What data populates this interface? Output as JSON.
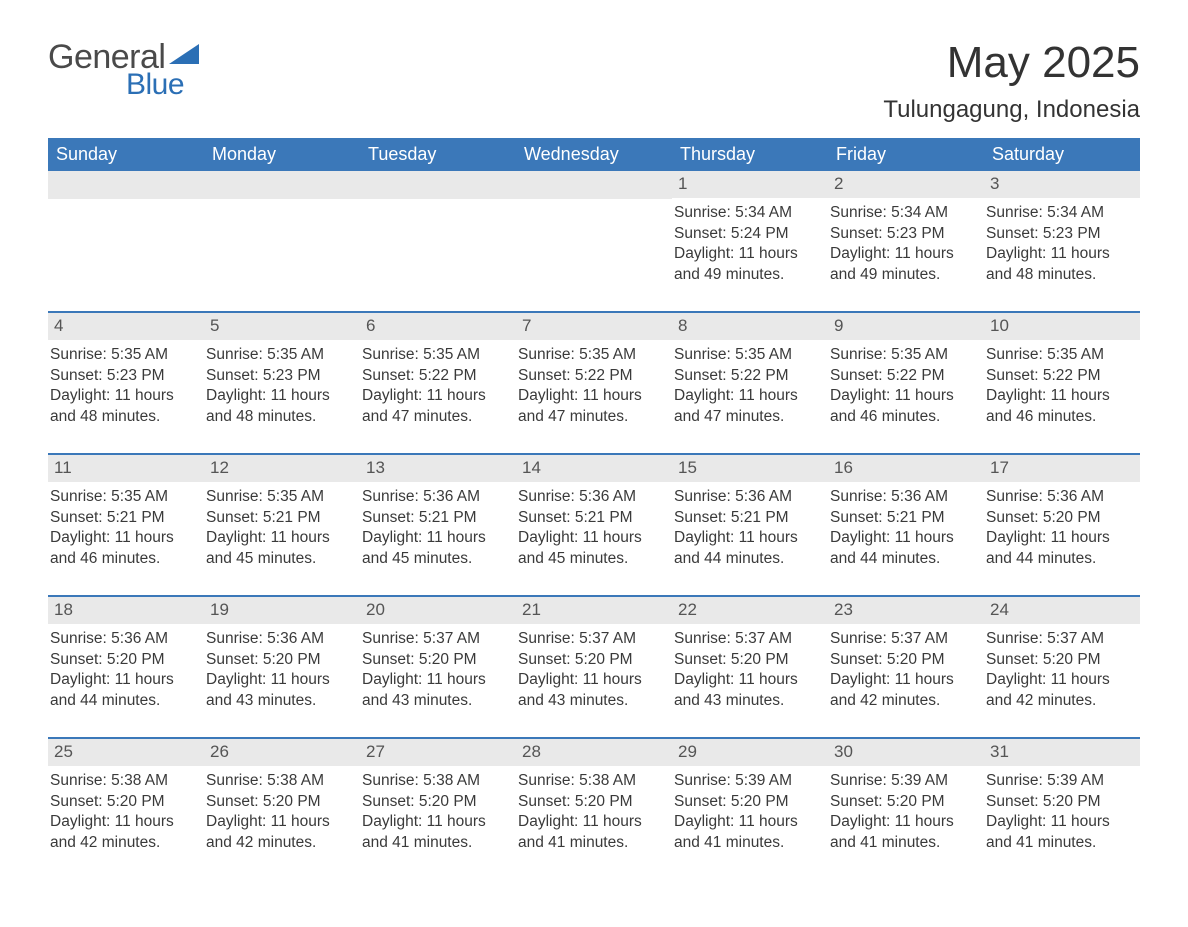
{
  "logo": {
    "text1": "General",
    "text2": "Blue",
    "accent_color": "#2b6fb5"
  },
  "title": {
    "month": "May 2025",
    "location": "Tulungagung, Indonesia"
  },
  "colors": {
    "header_bg": "#3b78b9",
    "header_text": "#ffffff",
    "daynum_bg": "#e9e9e9",
    "daynum_text": "#555555",
    "body_text": "#3a3a3a",
    "row_border": "#3b78b9"
  },
  "day_headers": [
    "Sunday",
    "Monday",
    "Tuesday",
    "Wednesday",
    "Thursday",
    "Friday",
    "Saturday"
  ],
  "weeks": [
    [
      {
        "day": "",
        "lines": []
      },
      {
        "day": "",
        "lines": []
      },
      {
        "day": "",
        "lines": []
      },
      {
        "day": "",
        "lines": []
      },
      {
        "day": "1",
        "lines": [
          "Sunrise: 5:34 AM",
          "Sunset: 5:24 PM",
          "Daylight: 11 hours and 49 minutes."
        ]
      },
      {
        "day": "2",
        "lines": [
          "Sunrise: 5:34 AM",
          "Sunset: 5:23 PM",
          "Daylight: 11 hours and 49 minutes."
        ]
      },
      {
        "day": "3",
        "lines": [
          "Sunrise: 5:34 AM",
          "Sunset: 5:23 PM",
          "Daylight: 11 hours and 48 minutes."
        ]
      }
    ],
    [
      {
        "day": "4",
        "lines": [
          "Sunrise: 5:35 AM",
          "Sunset: 5:23 PM",
          "Daylight: 11 hours and 48 minutes."
        ]
      },
      {
        "day": "5",
        "lines": [
          "Sunrise: 5:35 AM",
          "Sunset: 5:23 PM",
          "Daylight: 11 hours and 48 minutes."
        ]
      },
      {
        "day": "6",
        "lines": [
          "Sunrise: 5:35 AM",
          "Sunset: 5:22 PM",
          "Daylight: 11 hours and 47 minutes."
        ]
      },
      {
        "day": "7",
        "lines": [
          "Sunrise: 5:35 AM",
          "Sunset: 5:22 PM",
          "Daylight: 11 hours and 47 minutes."
        ]
      },
      {
        "day": "8",
        "lines": [
          "Sunrise: 5:35 AM",
          "Sunset: 5:22 PM",
          "Daylight: 11 hours and 47 minutes."
        ]
      },
      {
        "day": "9",
        "lines": [
          "Sunrise: 5:35 AM",
          "Sunset: 5:22 PM",
          "Daylight: 11 hours and 46 minutes."
        ]
      },
      {
        "day": "10",
        "lines": [
          "Sunrise: 5:35 AM",
          "Sunset: 5:22 PM",
          "Daylight: 11 hours and 46 minutes."
        ]
      }
    ],
    [
      {
        "day": "11",
        "lines": [
          "Sunrise: 5:35 AM",
          "Sunset: 5:21 PM",
          "Daylight: 11 hours and 46 minutes."
        ]
      },
      {
        "day": "12",
        "lines": [
          "Sunrise: 5:35 AM",
          "Sunset: 5:21 PM",
          "Daylight: 11 hours and 45 minutes."
        ]
      },
      {
        "day": "13",
        "lines": [
          "Sunrise: 5:36 AM",
          "Sunset: 5:21 PM",
          "Daylight: 11 hours and 45 minutes."
        ]
      },
      {
        "day": "14",
        "lines": [
          "Sunrise: 5:36 AM",
          "Sunset: 5:21 PM",
          "Daylight: 11 hours and 45 minutes."
        ]
      },
      {
        "day": "15",
        "lines": [
          "Sunrise: 5:36 AM",
          "Sunset: 5:21 PM",
          "Daylight: 11 hours and 44 minutes."
        ]
      },
      {
        "day": "16",
        "lines": [
          "Sunrise: 5:36 AM",
          "Sunset: 5:21 PM",
          "Daylight: 11 hours and 44 minutes."
        ]
      },
      {
        "day": "17",
        "lines": [
          "Sunrise: 5:36 AM",
          "Sunset: 5:20 PM",
          "Daylight: 11 hours and 44 minutes."
        ]
      }
    ],
    [
      {
        "day": "18",
        "lines": [
          "Sunrise: 5:36 AM",
          "Sunset: 5:20 PM",
          "Daylight: 11 hours and 44 minutes."
        ]
      },
      {
        "day": "19",
        "lines": [
          "Sunrise: 5:36 AM",
          "Sunset: 5:20 PM",
          "Daylight: 11 hours and 43 minutes."
        ]
      },
      {
        "day": "20",
        "lines": [
          "Sunrise: 5:37 AM",
          "Sunset: 5:20 PM",
          "Daylight: 11 hours and 43 minutes."
        ]
      },
      {
        "day": "21",
        "lines": [
          "Sunrise: 5:37 AM",
          "Sunset: 5:20 PM",
          "Daylight: 11 hours and 43 minutes."
        ]
      },
      {
        "day": "22",
        "lines": [
          "Sunrise: 5:37 AM",
          "Sunset: 5:20 PM",
          "Daylight: 11 hours and 43 minutes."
        ]
      },
      {
        "day": "23",
        "lines": [
          "Sunrise: 5:37 AM",
          "Sunset: 5:20 PM",
          "Daylight: 11 hours and 42 minutes."
        ]
      },
      {
        "day": "24",
        "lines": [
          "Sunrise: 5:37 AM",
          "Sunset: 5:20 PM",
          "Daylight: 11 hours and 42 minutes."
        ]
      }
    ],
    [
      {
        "day": "25",
        "lines": [
          "Sunrise: 5:38 AM",
          "Sunset: 5:20 PM",
          "Daylight: 11 hours and 42 minutes."
        ]
      },
      {
        "day": "26",
        "lines": [
          "Sunrise: 5:38 AM",
          "Sunset: 5:20 PM",
          "Daylight: 11 hours and 42 minutes."
        ]
      },
      {
        "day": "27",
        "lines": [
          "Sunrise: 5:38 AM",
          "Sunset: 5:20 PM",
          "Daylight: 11 hours and 41 minutes."
        ]
      },
      {
        "day": "28",
        "lines": [
          "Sunrise: 5:38 AM",
          "Sunset: 5:20 PM",
          "Daylight: 11 hours and 41 minutes."
        ]
      },
      {
        "day": "29",
        "lines": [
          "Sunrise: 5:39 AM",
          "Sunset: 5:20 PM",
          "Daylight: 11 hours and 41 minutes."
        ]
      },
      {
        "day": "30",
        "lines": [
          "Sunrise: 5:39 AM",
          "Sunset: 5:20 PM",
          "Daylight: 11 hours and 41 minutes."
        ]
      },
      {
        "day": "31",
        "lines": [
          "Sunrise: 5:39 AM",
          "Sunset: 5:20 PM",
          "Daylight: 11 hours and 41 minutes."
        ]
      }
    ]
  ]
}
